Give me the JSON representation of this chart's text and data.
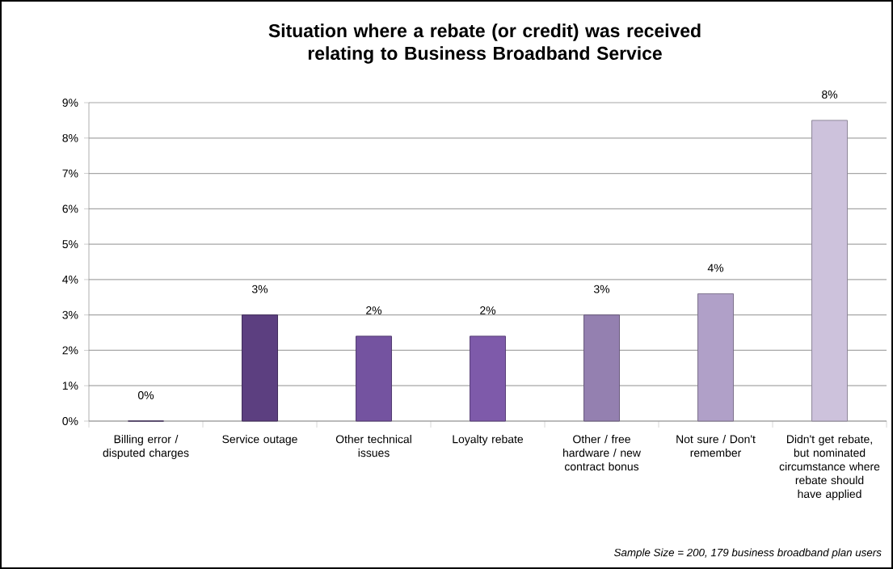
{
  "chart_data": {
    "type": "bar",
    "title": "Situation where a rebate (or credit) was received relating to Business Broadband Service",
    "categories": [
      "Billing error / disputed charges",
      "Service outage",
      "Other technical issues",
      "Loyalty rebate",
      "Other / free hardware / new contract bonus",
      "Not sure / Don't remember",
      "Didn't get rebate, but nominated circumstance where rebate should have applied"
    ],
    "values": [
      0,
      3.0,
      2.4,
      2.4,
      3.0,
      3.6,
      8.5
    ],
    "value_labels": [
      "0%",
      "3%",
      "2%",
      "2%",
      "3%",
      "4%",
      "8%"
    ],
    "colors": [
      "#5a3f7e",
      "#5c3f80",
      "#7453a0",
      "#7e5aaa",
      "#9480b0",
      "#b0a0c8",
      "#cdc2dc"
    ],
    "ylim": [
      0,
      9
    ],
    "yticks": [
      {
        "value": 0,
        "label": "0%"
      },
      {
        "value": 1,
        "label": "1%"
      },
      {
        "value": 2,
        "label": "2%"
      },
      {
        "value": 3,
        "label": "3%"
      },
      {
        "value": 4,
        "label": "4%"
      },
      {
        "value": 5,
        "label": "5%"
      },
      {
        "value": 6,
        "label": "6%"
      },
      {
        "value": 7,
        "label": "7%"
      },
      {
        "value": 8,
        "label": "8%"
      },
      {
        "value": 9,
        "label": "9%"
      }
    ],
    "grid": "y",
    "annotations": [
      "Sample Size = 200, 179 business broadband plan users"
    ]
  }
}
